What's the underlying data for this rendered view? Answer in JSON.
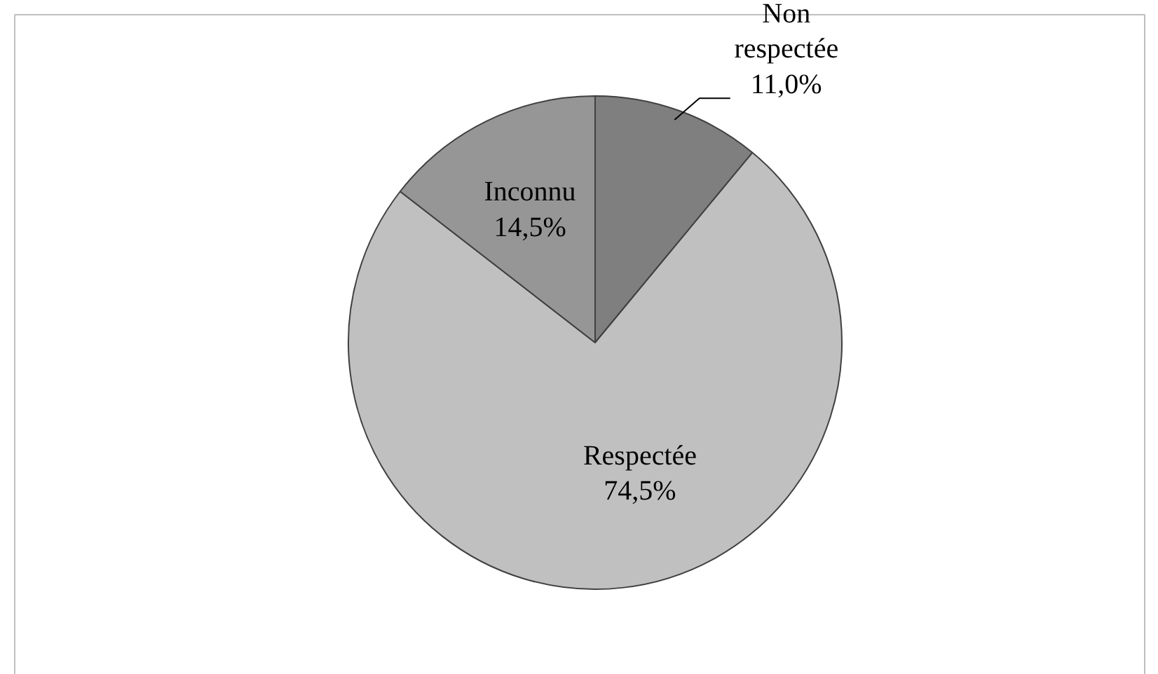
{
  "chart_data": {
    "type": "pie",
    "categories": [
      "Non respectée",
      "Respectée",
      "Inconnu"
    ],
    "values": [
      11.0,
      74.5,
      14.5
    ],
    "colors": [
      "#7f7f7f",
      "#c0c0c0",
      "#969696"
    ],
    "value_labels": [
      "11,0%",
      "74,5%",
      "14,5%"
    ]
  }
}
